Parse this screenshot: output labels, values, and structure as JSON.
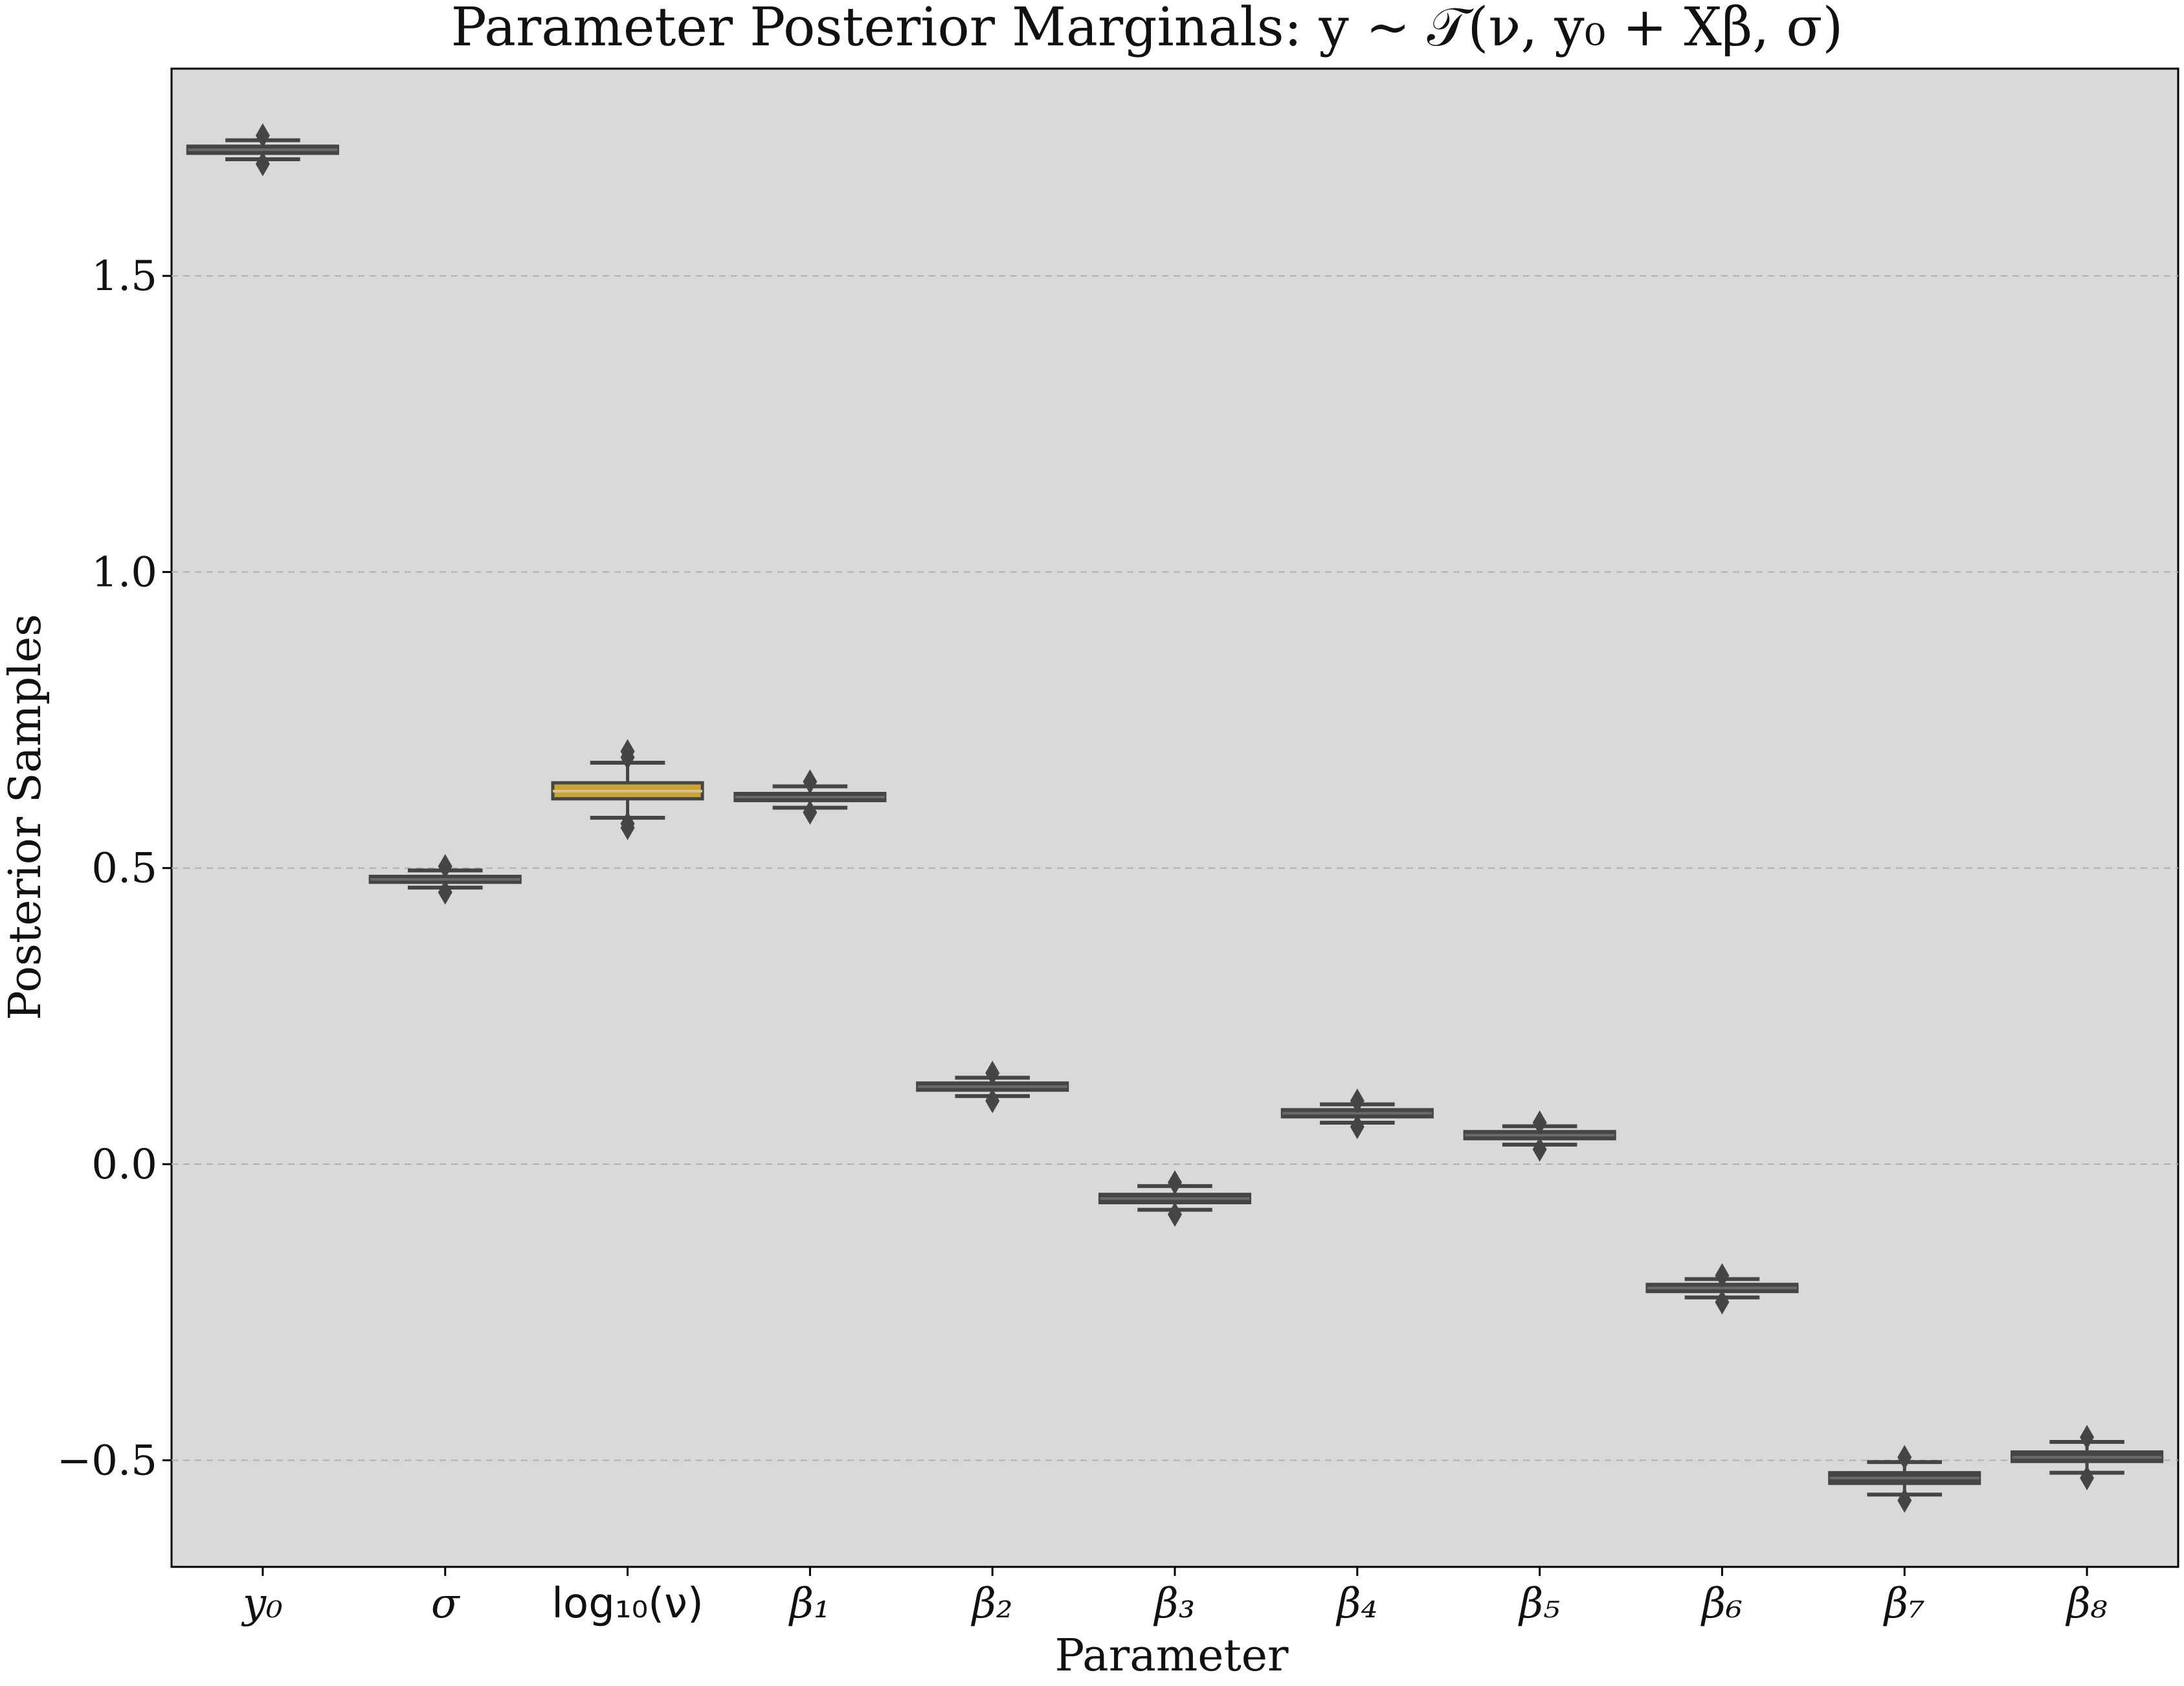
{
  "chart_data": {
    "type": "box",
    "title": "Parameter Posterior Marginals: y ~ 𝒯(ν, y₀ + Xβ, σ)",
    "xlabel": "Parameter",
    "ylabel": "Posterior Samples",
    "ylim": [
      -0.68,
      1.85
    ],
    "yticks": [
      1.5,
      1.0,
      0.5,
      0.0,
      -0.5
    ],
    "ytick_labels": [
      "1.5",
      "1.0",
      "0.5",
      "0.0",
      "−0.5"
    ],
    "grid": "y-dashed",
    "background": "#d9d9d9",
    "box_color": "#454545",
    "highlight_color": "#c9a23a",
    "boxes": [
      {
        "label": "y₀",
        "q1": 1.707,
        "median": 1.713,
        "q3": 1.719,
        "whislo": 1.697,
        "whishi": 1.729,
        "fliers": [
          1.689,
          1.737
        ]
      },
      {
        "label": "σ",
        "q1": 0.476,
        "median": 0.481,
        "q3": 0.486,
        "whislo": 0.467,
        "whishi": 0.496,
        "fliers": [
          0.459,
          0.503
        ]
      },
      {
        "label": "log₁₀(ν)",
        "q1": 0.617,
        "median": 0.63,
        "q3": 0.644,
        "whislo": 0.585,
        "whishi": 0.678,
        "fliers": [
          0.568,
          0.575,
          0.687,
          0.697
        ],
        "highlight": true
      },
      {
        "label": "β₁",
        "q1": 0.614,
        "median": 0.62,
        "q3": 0.626,
        "whislo": 0.602,
        "whishi": 0.638,
        "fliers": [
          0.594,
          0.646
        ]
      },
      {
        "label": "β₂",
        "q1": 0.125,
        "median": 0.131,
        "q3": 0.137,
        "whislo": 0.115,
        "whishi": 0.146,
        "fliers": [
          0.107,
          0.154
        ]
      },
      {
        "label": "β₃",
        "q1": -0.065,
        "median": -0.058,
        "q3": -0.051,
        "whislo": -0.077,
        "whishi": -0.037,
        "fliers": [
          -0.085,
          -0.031
        ]
      },
      {
        "label": "β₄",
        "q1": 0.08,
        "median": 0.086,
        "q3": 0.092,
        "whislo": 0.07,
        "whishi": 0.101,
        "fliers": [
          0.063,
          0.107
        ]
      },
      {
        "label": "β₅",
        "q1": 0.043,
        "median": 0.049,
        "q3": 0.055,
        "whislo": 0.033,
        "whishi": 0.064,
        "fliers": [
          0.025,
          0.07
        ]
      },
      {
        "label": "β₆",
        "q1": -0.215,
        "median": -0.209,
        "q3": -0.203,
        "whislo": -0.225,
        "whishi": -0.194,
        "fliers": [
          -0.233,
          -0.188
        ]
      },
      {
        "label": "β₇",
        "q1": -0.539,
        "median": -0.53,
        "q3": -0.521,
        "whislo": -0.558,
        "whishi": -0.503,
        "fliers": [
          -0.568,
          -0.495
        ]
      },
      {
        "label": "β₈",
        "q1": -0.502,
        "median": -0.495,
        "q3": -0.486,
        "whislo": -0.521,
        "whishi": -0.469,
        "fliers": [
          -0.53,
          -0.461
        ]
      }
    ]
  }
}
